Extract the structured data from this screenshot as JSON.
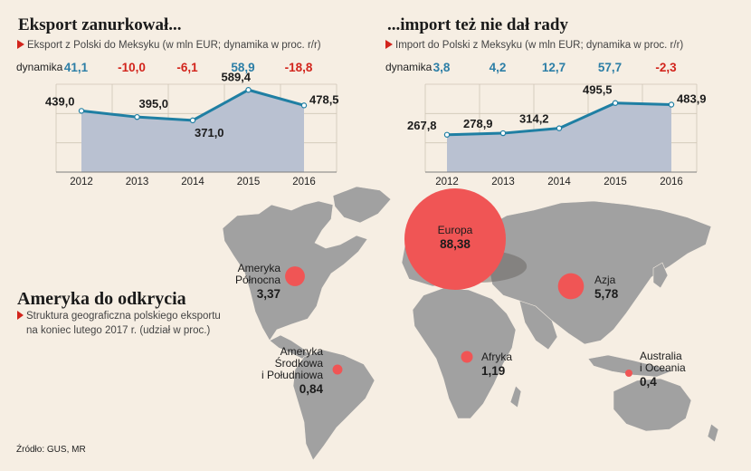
{
  "colors": {
    "background": "#f6eee3",
    "area_fill": "#b9c1d1",
    "line": "#1f7fa3",
    "positive": "#2c7ea6",
    "negative": "#d2241c",
    "bubble": "#f05555",
    "land": "#a1a1a1",
    "accent_arrow": "#d2241c"
  },
  "chart_data": [
    {
      "type": "area",
      "title": "Eksport zanurkował...",
      "subtitle": "Eksport z Polski do Meksyku (w mln EUR; dynamika w proc. r/r)",
      "dynamics_label": "dynamika",
      "categories": [
        "2012",
        "2013",
        "2014",
        "2015",
        "2016"
      ],
      "values": [
        439.0,
        395.0,
        371.0,
        589.4,
        478.5
      ],
      "value_labels": [
        "439,0",
        "395,0",
        "371,0",
        "589,4",
        "478,5"
      ],
      "dynamics": [
        41.1,
        -10.0,
        -6.1,
        58.9,
        -18.8
      ],
      "dynamics_labels": [
        "41,1",
        "-10,0",
        "-6,1",
        "58,9",
        "-18,8"
      ],
      "ylim": [
        0,
        630
      ],
      "grid": true
    },
    {
      "type": "area",
      "title": "...import też nie dał rady",
      "subtitle": "Import do Polski z Meksyku (w mln EUR; dynamika w proc. r/r)",
      "dynamics_label": "dynamika",
      "categories": [
        "2012",
        "2013",
        "2014",
        "2015",
        "2016"
      ],
      "values": [
        267.8,
        278.9,
        314.2,
        495.5,
        483.9
      ],
      "value_labels": [
        "267,8",
        "278,9",
        "314,2",
        "495,5",
        "483,9"
      ],
      "dynamics": [
        3.8,
        4.2,
        12.7,
        57.7,
        -2.3
      ],
      "dynamics_labels": [
        "3,8",
        "4,2",
        "12,7",
        "57,7",
        "-2,3"
      ],
      "ylim": [
        0,
        630
      ],
      "grid": true
    },
    {
      "type": "bubble-map",
      "title": "Ameryka do odkrycia",
      "subtitle_lines": [
        "Struktura geograficzna polskiego eksportu",
        "na koniec lutego 2017 r. (udział w proc.)"
      ],
      "regions": [
        {
          "name_lines": [
            "Europa"
          ],
          "share": 88.38,
          "share_label": "88,38"
        },
        {
          "name_lines": [
            "Ameryka",
            "Północna"
          ],
          "share": 3.37,
          "share_label": "3,37"
        },
        {
          "name_lines": [
            "Azja"
          ],
          "share": 5.78,
          "share_label": "5,78"
        },
        {
          "name_lines": [
            "Afryka"
          ],
          "share": 1.19,
          "share_label": "1,19"
        },
        {
          "name_lines": [
            "Ameryka",
            "Środkowa",
            "i Południowa"
          ],
          "share": 0.84,
          "share_label": "0,84"
        },
        {
          "name_lines": [
            "Australia",
            "i Oceania"
          ],
          "share": 0.4,
          "share_label": "0,4"
        }
      ]
    }
  ],
  "source": "Źródło: GUS, MR"
}
